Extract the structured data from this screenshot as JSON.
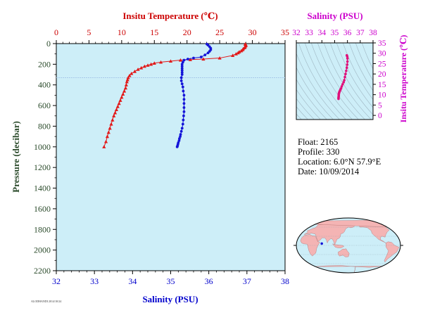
{
  "chart_data": [
    {
      "type": "scatter",
      "title": "",
      "top_axis": {
        "label": "Insitu Temperature (℃)",
        "range": [
          0,
          35
        ],
        "ticks": [
          "0",
          "5",
          "10",
          "15",
          "20",
          "25",
          "30",
          "35"
        ],
        "color": "#cc0000"
      },
      "bottom_axis": {
        "label": "Salinity (PSU)",
        "range": [
          32,
          38
        ],
        "ticks": [
          "32",
          "33",
          "34",
          "35",
          "36",
          "37",
          "38"
        ],
        "color": "#0000cc"
      },
      "y_axis": {
        "label": "Pressure (decibar)",
        "range": [
          0,
          2200
        ],
        "inverted": true,
        "ticks": [
          "0",
          "200",
          "400",
          "600",
          "800",
          "1000",
          "1200",
          "1400",
          "1600",
          "1800",
          "2000",
          "2200"
        ],
        "color": "#2a4a2a"
      },
      "grid": false,
      "background": "#cdeef8",
      "mixed_layer_pressure": 330,
      "series": [
        {
          "marker": "triangle",
          "color": "#e21818",
          "x_axis": "temperature",
          "x": [
            28.9,
            29.0,
            29.0,
            28.9,
            28.8,
            28.6,
            28.5,
            28.3,
            28.0,
            27.8,
            27.5,
            27.0,
            25.0,
            22.5,
            20.5,
            19.0,
            17.5,
            16.0,
            15.0,
            14.5,
            14.0,
            13.5,
            13.0,
            12.5,
            12.0,
            11.5,
            11.2,
            11.0,
            10.9,
            10.8,
            10.7,
            10.6,
            10.4,
            10.2,
            10.0,
            9.8,
            9.6,
            9.4,
            9.2,
            9.0,
            8.8,
            8.6,
            8.4,
            8.2,
            8.0,
            7.8,
            7.6,
            7.3
          ],
          "y": [
            5,
            10,
            20,
            30,
            40,
            50,
            60,
            70,
            80,
            90,
            100,
            115,
            140,
            150,
            155,
            160,
            170,
            180,
            190,
            200,
            210,
            220,
            235,
            250,
            270,
            290,
            310,
            330,
            350,
            370,
            400,
            430,
            460,
            490,
            520,
            550,
            580,
            610,
            640,
            670,
            700,
            740,
            780,
            820,
            860,
            900,
            950,
            1000
          ]
        },
        {
          "marker": "circle",
          "color": "#1414d8",
          "x_axis": "salinity",
          "x": [
            35.95,
            35.98,
            36.02,
            36.05,
            36.05,
            36.02,
            35.98,
            35.9,
            35.8,
            35.6,
            35.45,
            35.35,
            35.32,
            35.3,
            35.3,
            35.3,
            35.3,
            35.3,
            35.3,
            35.28,
            35.28,
            35.3,
            35.32,
            35.33,
            35.35,
            35.35,
            35.35,
            35.35,
            35.35,
            35.34,
            35.33,
            35.32,
            35.3,
            35.28,
            35.26,
            35.25,
            35.23,
            35.22,
            35.2,
            35.19,
            35.18,
            35.17
          ],
          "y": [
            5,
            15,
            30,
            45,
            60,
            75,
            90,
            110,
            130,
            140,
            150,
            160,
            180,
            200,
            220,
            240,
            260,
            280,
            300,
            330,
            360,
            390,
            420,
            460,
            500,
            540,
            580,
            620,
            660,
            700,
            740,
            780,
            820,
            850,
            880,
            900,
            920,
            940,
            960,
            975,
            990,
            1000
          ]
        }
      ]
    },
    {
      "type": "scatter",
      "title": "",
      "top_axis": {
        "label": "Salinity (PSU)",
        "range": [
          32,
          38
        ],
        "ticks": [
          "32",
          "33",
          "34",
          "35",
          "36",
          "37",
          "38"
        ],
        "color": "#cc00cc"
      },
      "right_axis": {
        "label": "Insitu Temperature (℃)",
        "range": [
          -2,
          35
        ],
        "ticks": [
          "0",
          "5",
          "10",
          "15",
          "20",
          "25",
          "30",
          "35"
        ],
        "color": "#cc00cc"
      },
      "background": "#cdeef8",
      "series": [
        {
          "marker": "circle",
          "color": "#e0107a",
          "x": [
            35.95,
            35.98,
            36.0,
            36.0,
            35.98,
            35.95,
            35.9,
            35.85,
            35.8,
            35.75,
            35.7,
            35.62,
            35.55,
            35.5,
            35.45,
            35.42,
            35.38,
            35.35,
            35.33,
            35.32,
            35.32,
            35.31,
            35.3,
            35.3
          ],
          "y": [
            29,
            28.5,
            27.5,
            26,
            24.5,
            23,
            21.5,
            20,
            18.5,
            17,
            16,
            15,
            14,
            13,
            12.5,
            12,
            11.5,
            11,
            10.5,
            10,
            9.5,
            9,
            8.5,
            8
          ]
        }
      ]
    }
  ],
  "info": {
    "float": "Float:  2165",
    "profile": "Profile:  330",
    "location": "Location:  6.0°N  57.9°E",
    "date": "Date:  10/09/2014"
  },
  "footer_text": "ALODHANDI 2014/10/24",
  "colors": {
    "temperature": "#e21818",
    "salinity": "#1414d8",
    "ts_curve": "#e0107a",
    "plot_background": "#cdeef8",
    "land": "#f4b4b4",
    "ocean": "#cdeef8",
    "float_marker": "#1414d8"
  },
  "map": {
    "float_lat": 6.0,
    "float_lon": 57.9
  }
}
